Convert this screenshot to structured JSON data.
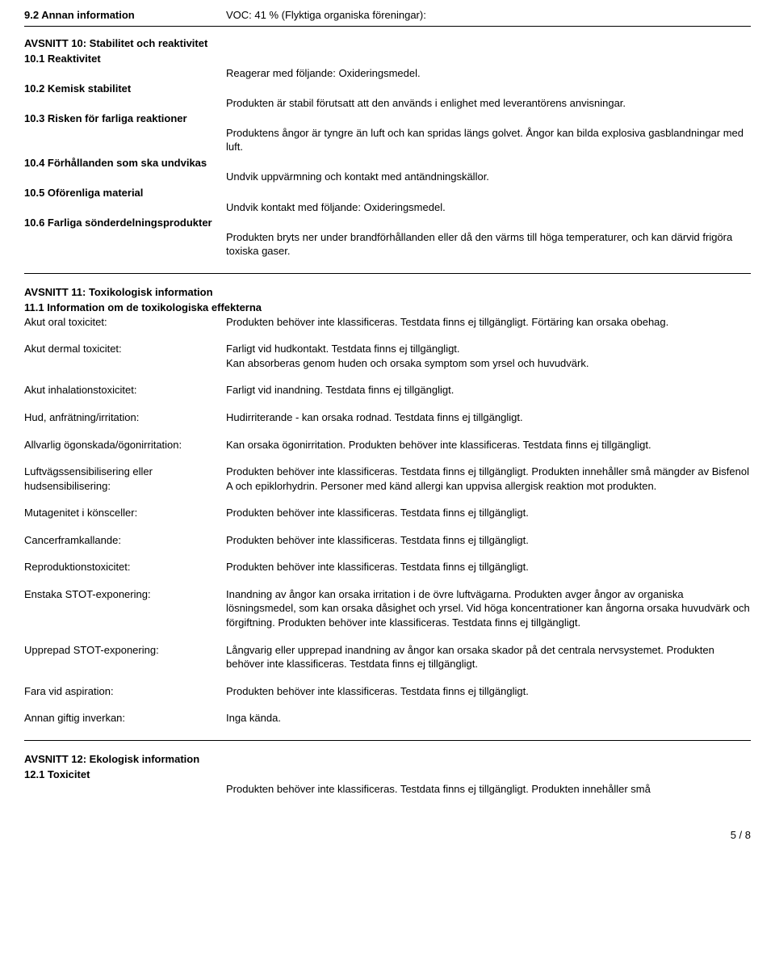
{
  "section9": {
    "heading": "9.2 Annan information",
    "voc": "VOC: 41 % (Flyktiga organiska föreningar):"
  },
  "section10": {
    "title": "AVSNITT 10: Stabilitet och reaktivitet",
    "s1": {
      "label": "10.1 Reaktivitet",
      "value": "Reagerar med följande: Oxideringsmedel."
    },
    "s2": {
      "label": "10.2 Kemisk stabilitet",
      "value": "Produkten är stabil förutsatt att den används i enlighet med leverantörens anvisningar."
    },
    "s3": {
      "label": "10.3 Risken för farliga reaktioner",
      "value": "Produktens ångor är tyngre än luft och kan spridas längs golvet. Ångor kan bilda explosiva gasblandningar med luft."
    },
    "s4": {
      "label": "10.4 Förhållanden som ska undvikas",
      "value": "Undvik uppvärmning och kontakt med antändningskällor."
    },
    "s5": {
      "label": "10.5 Oförenliga material",
      "value": "Undvik kontakt med följande: Oxideringsmedel."
    },
    "s6": {
      "label": "10.6 Farliga sönderdelningsprodukter",
      "value": "Produkten bryts ner under brandförhållanden eller då den värms till höga temperaturer, och kan därvid frigöra toxiska gaser."
    }
  },
  "section11": {
    "title": "AVSNITT 11: Toxikologisk information",
    "subtitle": "11.1 Information om de toxikologiska effekterna",
    "rows": [
      {
        "label": "Akut oral toxicitet:",
        "value": "Produkten behöver inte klassificeras. Testdata finns ej tillgängligt. Förtäring kan orsaka obehag."
      },
      {
        "label": "Akut dermal toxicitet:",
        "value": "Farligt vid hudkontakt. Testdata finns ej tillgängligt.\nKan absorberas genom huden och orsaka symptom som yrsel och huvudvärk."
      },
      {
        "label": "Akut inhalationstoxicitet:",
        "value": "Farligt vid inandning. Testdata finns ej tillgängligt."
      },
      {
        "label": "Hud, anfrätning/irritation:",
        "value": "Hudirriterande - kan orsaka rodnad.  Testdata finns ej tillgängligt."
      },
      {
        "label": "Allvarlig ögonskada/ögonirritation:",
        "value": "Kan orsaka ögonirritation. Produkten behöver inte klassificeras. Testdata finns ej tillgängligt."
      },
      {
        "label": "Luftvägssensibilisering eller hudsensibilisering:",
        "value": "Produkten behöver inte klassificeras. Testdata finns ej tillgängligt. Produkten innehåller små mängder av  Bisfenol A och epiklorhydrin. Personer med känd allergi kan uppvisa allergisk reaktion mot produkten."
      },
      {
        "label": "Mutagenitet i könsceller:",
        "value": "Produkten behöver inte klassificeras. Testdata finns ej tillgängligt."
      },
      {
        "label": "Cancerframkallande:",
        "value": "Produkten behöver inte klassificeras. Testdata finns ej tillgängligt."
      },
      {
        "label": "Reproduktionstoxicitet:",
        "value": "Produkten behöver inte klassificeras. Testdata finns ej tillgängligt."
      },
      {
        "label": "Enstaka STOT-exponering:",
        "value": "Inandning av ångor kan orsaka irritation i de övre luftvägarna. Produkten avger ångor av organiska lösningsmedel, som kan orsaka dåsighet och yrsel. Vid höga koncentrationer kan ångorna orsaka huvudvärk och förgiftning. Produkten behöver inte klassificeras. Testdata finns ej tillgängligt."
      },
      {
        "label": "Upprepad STOT-exponering:",
        "value": "Långvarig eller upprepad inandning av ångor kan orsaka skador på det centrala nervsystemet. Produkten behöver inte klassificeras. Testdata finns ej tillgängligt."
      },
      {
        "label": "Fara vid aspiration:",
        "value": "Produkten behöver inte klassificeras. Testdata finns ej tillgängligt."
      },
      {
        "label": "Annan giftig inverkan:",
        "value": "Inga kända."
      }
    ]
  },
  "section12": {
    "title": "AVSNITT 12: Ekologisk information",
    "s1": {
      "label": "12.1 Toxicitet",
      "value": "Produkten behöver inte klassificeras. Testdata finns ej tillgängligt. Produkten innehåller små"
    }
  },
  "footer": {
    "page": "5 / 8"
  }
}
